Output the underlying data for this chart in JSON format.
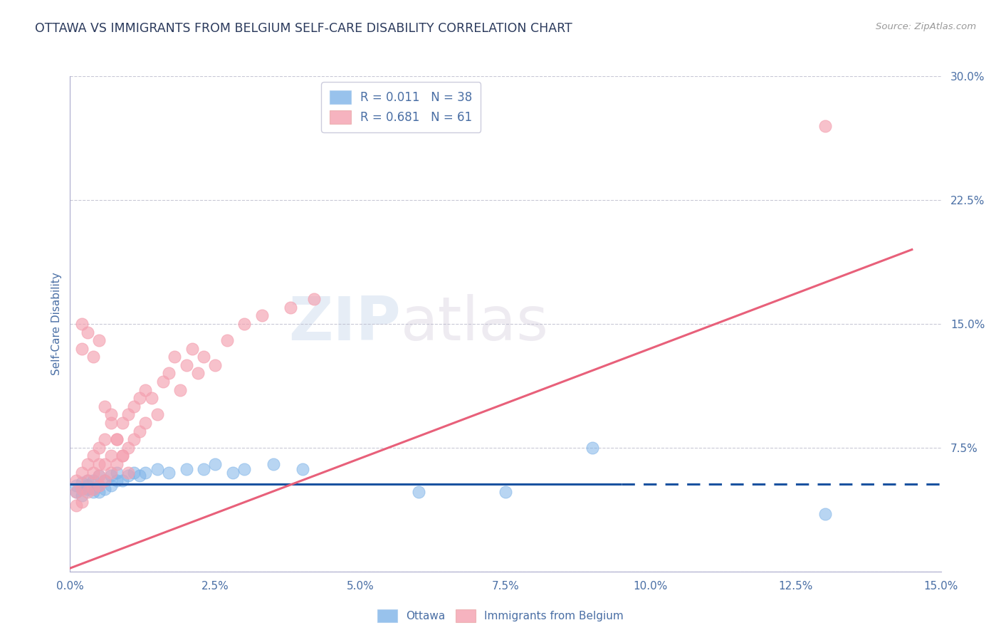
{
  "title": "OTTAWA VS IMMIGRANTS FROM BELGIUM SELF-CARE DISABILITY CORRELATION CHART",
  "source_text": "Source: ZipAtlas.com",
  "ylabel": "Self-Care Disability",
  "xlim": [
    0.0,
    0.15
  ],
  "ylim": [
    0.0,
    0.3
  ],
  "xticks": [
    0.0,
    0.025,
    0.05,
    0.075,
    0.1,
    0.125,
    0.15
  ],
  "xticklabels": [
    "0.0%",
    "2.5%",
    "5.0%",
    "7.5%",
    "10.0%",
    "12.5%",
    "15.0%"
  ],
  "yticks": [
    0.0,
    0.075,
    0.15,
    0.225,
    0.3
  ],
  "yticklabels": [
    "",
    "7.5%",
    "15.0%",
    "22.5%",
    "30.0%"
  ],
  "blue_color": "#7EB3E8",
  "pink_color": "#F4A0B0",
  "title_color": "#2B3A5C",
  "axis_color": "#4A6FA5",
  "watermark_color": "#D8E4F0",
  "trend_blue": "#1A52A0",
  "trend_pink": "#E8607A",
  "ottawa_x": [
    0.001,
    0.001,
    0.002,
    0.002,
    0.002,
    0.003,
    0.003,
    0.003,
    0.004,
    0.004,
    0.004,
    0.005,
    0.005,
    0.005,
    0.006,
    0.006,
    0.007,
    0.007,
    0.008,
    0.008,
    0.009,
    0.01,
    0.011,
    0.012,
    0.013,
    0.015,
    0.017,
    0.02,
    0.023,
    0.025,
    0.028,
    0.03,
    0.035,
    0.04,
    0.06,
    0.075,
    0.09,
    0.13
  ],
  "ottawa_y": [
    0.048,
    0.052,
    0.05,
    0.054,
    0.046,
    0.05,
    0.052,
    0.055,
    0.05,
    0.048,
    0.055,
    0.048,
    0.052,
    0.058,
    0.05,
    0.055,
    0.052,
    0.058,
    0.055,
    0.06,
    0.055,
    0.058,
    0.06,
    0.058,
    0.06,
    0.062,
    0.06,
    0.062,
    0.062,
    0.065,
    0.06,
    0.062,
    0.065,
    0.062,
    0.048,
    0.048,
    0.075,
    0.035
  ],
  "belgium_x": [
    0.001,
    0.001,
    0.001,
    0.002,
    0.002,
    0.002,
    0.003,
    0.003,
    0.003,
    0.004,
    0.004,
    0.004,
    0.005,
    0.005,
    0.005,
    0.005,
    0.006,
    0.006,
    0.006,
    0.007,
    0.007,
    0.007,
    0.008,
    0.008,
    0.009,
    0.009,
    0.01,
    0.01,
    0.011,
    0.011,
    0.012,
    0.012,
    0.013,
    0.013,
    0.014,
    0.015,
    0.016,
    0.017,
    0.018,
    0.019,
    0.02,
    0.021,
    0.022,
    0.023,
    0.025,
    0.027,
    0.03,
    0.033,
    0.038,
    0.042,
    0.002,
    0.002,
    0.003,
    0.004,
    0.005,
    0.006,
    0.007,
    0.008,
    0.009,
    0.01,
    0.13
  ],
  "belgium_y": [
    0.04,
    0.048,
    0.055,
    0.042,
    0.05,
    0.06,
    0.048,
    0.055,
    0.065,
    0.05,
    0.06,
    0.07,
    0.052,
    0.058,
    0.065,
    0.075,
    0.055,
    0.065,
    0.08,
    0.06,
    0.07,
    0.09,
    0.065,
    0.08,
    0.07,
    0.09,
    0.075,
    0.095,
    0.08,
    0.1,
    0.085,
    0.105,
    0.09,
    0.11,
    0.105,
    0.095,
    0.115,
    0.12,
    0.13,
    0.11,
    0.125,
    0.135,
    0.12,
    0.13,
    0.125,
    0.14,
    0.15,
    0.155,
    0.16,
    0.165,
    0.15,
    0.135,
    0.145,
    0.13,
    0.14,
    0.1,
    0.095,
    0.08,
    0.07,
    0.06,
    0.27
  ]
}
